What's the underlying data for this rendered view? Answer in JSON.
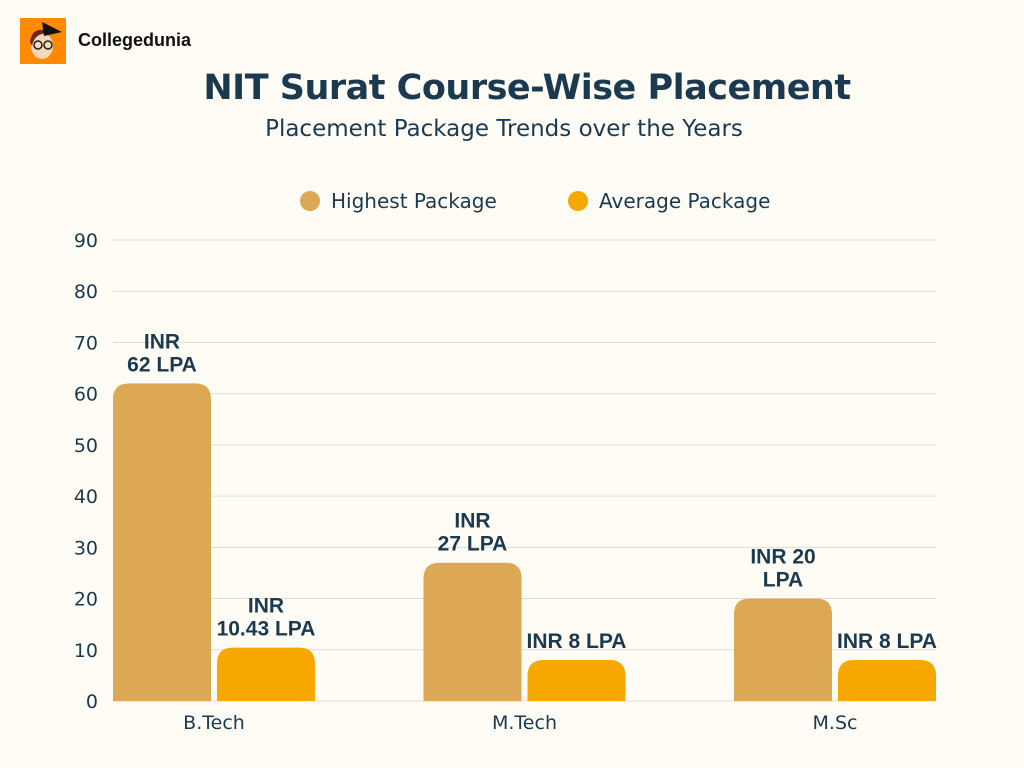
{
  "brand": {
    "name": "Collegedunia",
    "logo_icon": "student-mascot-icon"
  },
  "chart_data": {
    "type": "bar",
    "title": "NIT Surat Course-Wise Placement",
    "subtitle": "Placement Package Trends over the Years",
    "categories": [
      "B.Tech",
      "M.Tech",
      "M.Sc"
    ],
    "series": [
      {
        "name": "Highest Package",
        "values": [
          62,
          27,
          20
        ],
        "color": "#DDA853",
        "labels": [
          [
            "INR",
            "62 LPA"
          ],
          [
            "INR",
            "27 LPA"
          ],
          [
            "INR 20",
            "LPA"
          ]
        ]
      },
      {
        "name": "Average Package",
        "values": [
          10.43,
          8,
          8
        ],
        "color": "#F6A800",
        "labels": [
          [
            "INR",
            "10.43 LPA"
          ],
          [
            "INR 8 LPA"
          ],
          [
            "INR 8 LPA"
          ]
        ]
      }
    ],
    "ylim": [
      0,
      90
    ],
    "yticks": [
      0,
      10,
      20,
      30,
      40,
      50,
      60,
      70,
      80,
      90
    ],
    "grid": true,
    "legend": "top-center",
    "xlabel": "",
    "ylabel": ""
  }
}
